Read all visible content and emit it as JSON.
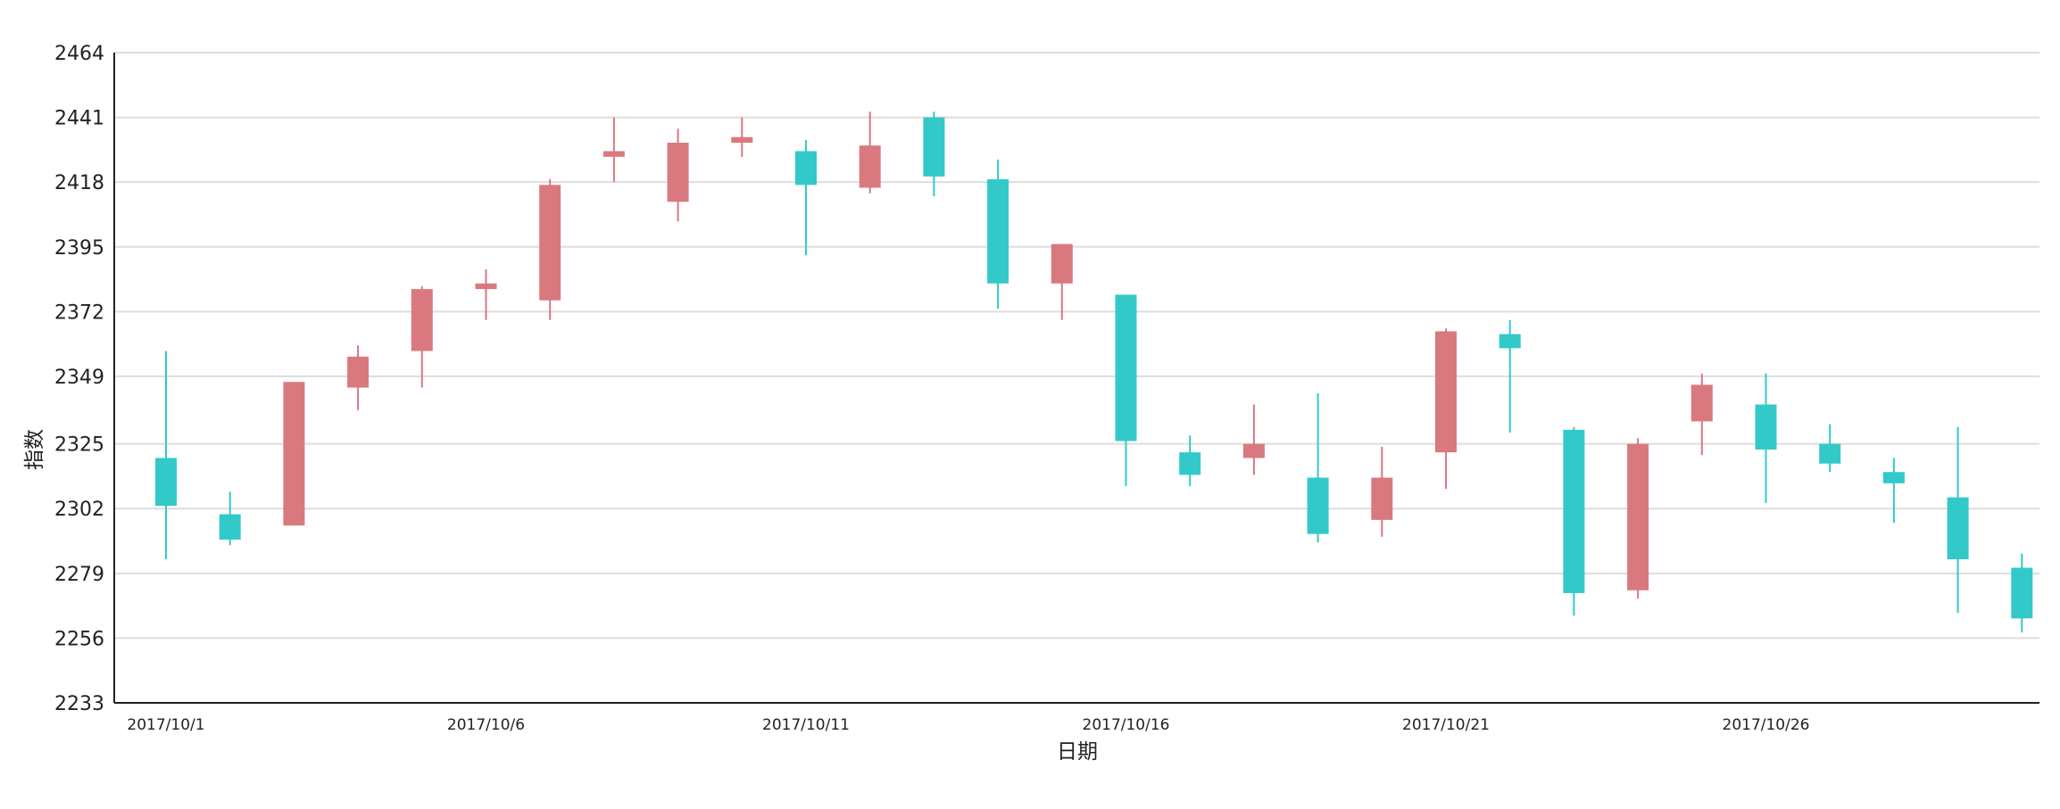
{
  "chart_data": {
    "type": "candlestick",
    "xlabel": "日期",
    "ylabel": "指数",
    "ylim": [
      2233,
      2464
    ],
    "yticks": [
      2233,
      2256,
      2279,
      2302,
      2325,
      2349,
      2372,
      2395,
      2418,
      2441,
      2464
    ],
    "grid": true,
    "x_tick_labels": [
      {
        "label": "2017/10/1",
        "index": 0
      },
      {
        "label": "2017/10/6",
        "index": 5
      },
      {
        "label": "2017/10/11",
        "index": 10
      },
      {
        "label": "2017/10/16",
        "index": 15
      },
      {
        "label": "2017/10/21",
        "index": 20
      },
      {
        "label": "2017/10/26",
        "index": 25
      }
    ],
    "colors": {
      "up": "#d9797f",
      "down": "#33c9c9",
      "grid": "#dddddd",
      "axis": "#222222"
    },
    "candles": [
      {
        "date": "2017/10/1",
        "open": 2320,
        "close": 2303,
        "low": 2284,
        "high": 2358
      },
      {
        "date": "2017/10/2",
        "open": 2300,
        "close": 2291,
        "low": 2289,
        "high": 2308
      },
      {
        "date": "2017/10/3",
        "open": 2296,
        "close": 2347,
        "low": 2296,
        "high": 2347
      },
      {
        "date": "2017/10/4",
        "open": 2345,
        "close": 2356,
        "low": 2337,
        "high": 2360
      },
      {
        "date": "2017/10/5",
        "open": 2358,
        "close": 2380,
        "low": 2345,
        "high": 2381
      },
      {
        "date": "2017/10/6",
        "open": 2380,
        "close": 2382,
        "low": 2369,
        "high": 2387
      },
      {
        "date": "2017/10/7",
        "open": 2376,
        "close": 2417,
        "low": 2369,
        "high": 2419
      },
      {
        "date": "2017/10/8",
        "open": 2427,
        "close": 2429,
        "low": 2418,
        "high": 2441
      },
      {
        "date": "2017/10/9",
        "open": 2411,
        "close": 2432,
        "low": 2404,
        "high": 2437
      },
      {
        "date": "2017/10/10",
        "open": 2432,
        "close": 2434,
        "low": 2427,
        "high": 2441
      },
      {
        "date": "2017/10/11",
        "open": 2429,
        "close": 2417,
        "low": 2392,
        "high": 2433
      },
      {
        "date": "2017/10/12",
        "open": 2416,
        "close": 2431,
        "low": 2414,
        "high": 2443
      },
      {
        "date": "2017/10/13",
        "open": 2441,
        "close": 2420,
        "low": 2413,
        "high": 2443
      },
      {
        "date": "2017/10/14",
        "open": 2419,
        "close": 2382,
        "low": 2373,
        "high": 2426
      },
      {
        "date": "2017/10/15",
        "open": 2382,
        "close": 2396,
        "low": 2369,
        "high": 2396
      },
      {
        "date": "2017/10/16",
        "open": 2378,
        "close": 2326,
        "low": 2310,
        "high": 2378
      },
      {
        "date": "2017/10/17",
        "open": 2322,
        "close": 2314,
        "low": 2310,
        "high": 2328
      },
      {
        "date": "2017/10/18",
        "open": 2320,
        "close": 2325,
        "low": 2314,
        "high": 2339
      },
      {
        "date": "2017/10/19",
        "open": 2313,
        "close": 2293,
        "low": 2290,
        "high": 2343
      },
      {
        "date": "2017/10/20",
        "open": 2298,
        "close": 2313,
        "low": 2292,
        "high": 2324
      },
      {
        "date": "2017/10/21",
        "open": 2322,
        "close": 2365,
        "low": 2309,
        "high": 2366
      },
      {
        "date": "2017/10/22",
        "open": 2364,
        "close": 2359,
        "low": 2329,
        "high": 2369
      },
      {
        "date": "2017/10/23",
        "open": 2330,
        "close": 2272,
        "low": 2264,
        "high": 2331
      },
      {
        "date": "2017/10/24",
        "open": 2273,
        "close": 2325,
        "low": 2270,
        "high": 2327
      },
      {
        "date": "2017/10/25",
        "open": 2333,
        "close": 2346,
        "low": 2321,
        "high": 2350
      },
      {
        "date": "2017/10/26",
        "open": 2339,
        "close": 2323,
        "low": 2304,
        "high": 2350
      },
      {
        "date": "2017/10/27",
        "open": 2325,
        "close": 2318,
        "low": 2315,
        "high": 2332
      },
      {
        "date": "2017/10/28",
        "open": 2315,
        "close": 2311,
        "low": 2297,
        "high": 2320
      },
      {
        "date": "2017/10/29",
        "open": 2306,
        "close": 2284,
        "low": 2265,
        "high": 2331
      },
      {
        "date": "2017/10/30",
        "open": 2281,
        "close": 2263,
        "low": 2258,
        "high": 2286
      }
    ]
  }
}
